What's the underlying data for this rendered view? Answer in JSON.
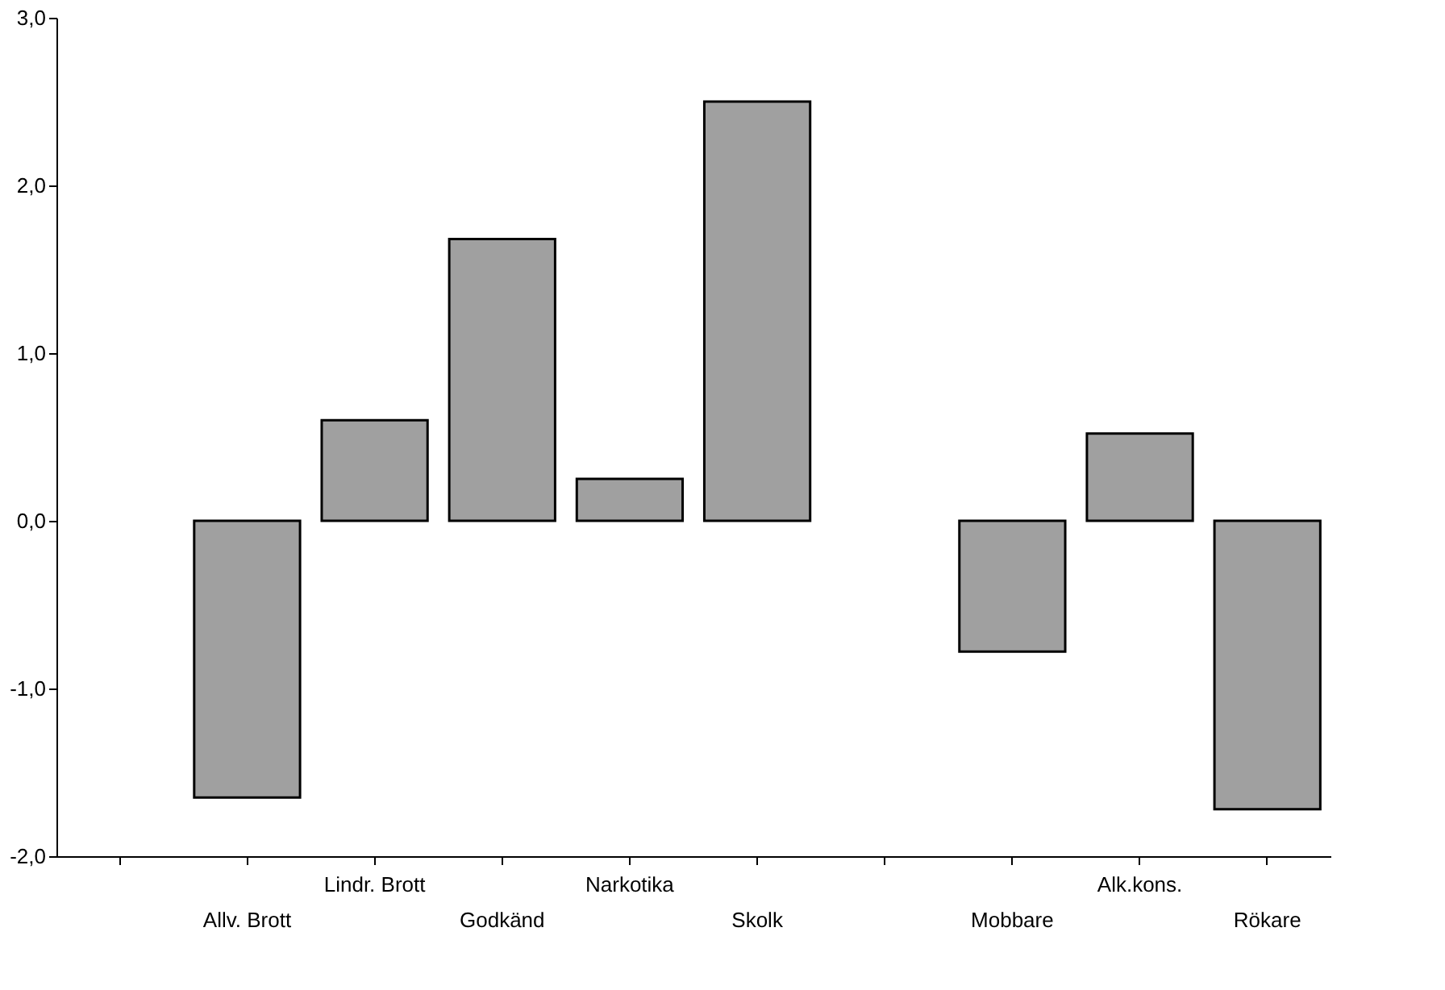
{
  "chart_data": {
    "type": "bar",
    "categories": [
      null,
      "Allv. Brott",
      "Lindr. Brott",
      "Godkänd",
      "Narkotika",
      "Skolk",
      null,
      "Mobbare",
      "Alk.kons.",
      "Rökare"
    ],
    "values": [
      null,
      -1.65,
      0.6,
      1.68,
      0.25,
      2.5,
      null,
      -0.78,
      0.52,
      -1.72
    ],
    "color": "#a0a0a0",
    "ylim": [
      -2,
      3
    ],
    "yticks": [
      {
        "value": -2,
        "label": "-2,0"
      },
      {
        "value": -1,
        "label": "-1,0"
      },
      {
        "value": 0,
        "label": "0,0"
      },
      {
        "value": 1,
        "label": "1,0"
      },
      {
        "value": 2,
        "label": "2,0"
      },
      {
        "value": 3,
        "label": "3,0"
      }
    ],
    "grid": false
  }
}
